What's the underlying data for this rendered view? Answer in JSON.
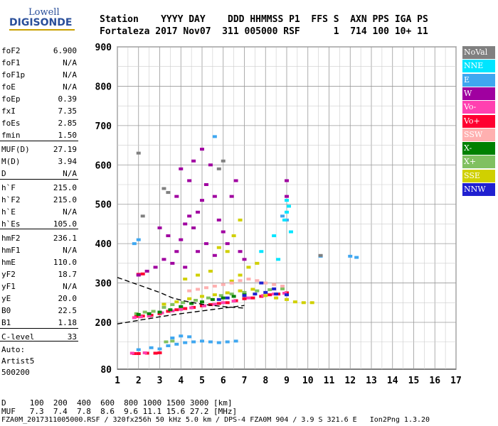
{
  "logo": {
    "top": "Lowell",
    "bottom": "DIGISONDE"
  },
  "header": {
    "line1": "Station    YYYY DAY    DDD HHMMSS P1  FFS S  AXN PPS IGA PS",
    "line2": "Fortaleza 2017 Nov07  311 005000 RSF      1  714 100 10+ 11"
  },
  "params": [
    {
      "label": "foF2",
      "value": "6.900"
    },
    {
      "label": "foF1",
      "value": "N/A"
    },
    {
      "label": "foF1p",
      "value": "N/A"
    },
    {
      "label": "foE",
      "value": "N/A"
    },
    {
      "label": "foEp",
      "value": "0.39"
    },
    {
      "label": "fxI",
      "value": "7.35"
    },
    {
      "label": "foEs",
      "value": "2.85"
    },
    {
      "label": "fmin",
      "value": "1.50"
    },
    {
      "label": "MUF(D)",
      "value": "27.19"
    },
    {
      "label": "M(D)",
      "value": "3.94"
    },
    {
      "label": "D",
      "value": "N/A"
    },
    {
      "label": "h`F",
      "value": "215.0"
    },
    {
      "label": "h`F2",
      "value": "215.0"
    },
    {
      "label": "h`E",
      "value": "N/A"
    },
    {
      "label": "h`Es",
      "value": "105.0"
    },
    {
      "label": "hmF2",
      "value": "236.1"
    },
    {
      "label": "hmF1",
      "value": "N/A"
    },
    {
      "label": "hmE",
      "value": "110.0"
    },
    {
      "label": "yF2",
      "value": "18.7"
    },
    {
      "label": "yF1",
      "value": "N/A"
    },
    {
      "label": "yE",
      "value": "20.0"
    },
    {
      "label": "B0",
      "value": "22.5"
    },
    {
      "label": "B1",
      "value": "1.18"
    },
    {
      "label": "C-level",
      "value": "33"
    }
  ],
  "auto": [
    "Auto:",
    "Artist5",
    "500200"
  ],
  "legend": [
    {
      "label": "NoVal",
      "color": "#808080"
    },
    {
      "label": "NNE",
      "color": "#00e5ff"
    },
    {
      "label": "E",
      "color": "#3fa7f0"
    },
    {
      "label": "W",
      "color": "#a000a0"
    },
    {
      "label": "Vo-",
      "color": "#ff40b0"
    },
    {
      "label": "Vo+",
      "color": "#ff0030"
    },
    {
      "label": "SSW",
      "color": "#ffb0b0"
    },
    {
      "label": "X-",
      "color": "#008000"
    },
    {
      "label": "X+",
      "color": "#80c060"
    },
    {
      "label": "SSE",
      "color": "#d0d000"
    },
    {
      "label": "NNW",
      "color": "#2020d0"
    }
  ],
  "footer": {
    "line1": "D     100  200  400  600  800 1000 1500 3000 [km]",
    "line2": "MUF   7.3  7.4  7.8  8.6  9.6 11.1 15.6 27.2 [MHz]",
    "line3": "FZA0M_2017311005000.RSF / 320fx256h 50 kHz 5.0 km / DPS-4 FZA0M 904 / 3.9 S 321.6 E   Ion2Png 1.3.20"
  },
  "chart_data": {
    "type": "scatter",
    "xlim": [
      1,
      17
    ],
    "ylim": [
      80,
      900
    ],
    "xticks": [
      "1",
      "2",
      "3",
      "4",
      "5",
      "6",
      "7",
      "8",
      "9",
      "10",
      "11",
      "12",
      "13",
      "14",
      "15",
      "16",
      "17"
    ],
    "yticks": [
      "80",
      "200",
      "300",
      "400",
      "500",
      "600",
      "700",
      "800",
      "900"
    ],
    "grid": true,
    "legend_position": "right",
    "series": [
      {
        "name": "Vo+",
        "color": "#ff0030",
        "points": [
          [
            1.9,
            215
          ],
          [
            2.2,
            216
          ],
          [
            2.6,
            218
          ],
          [
            3.0,
            222
          ],
          [
            3.4,
            228
          ],
          [
            3.8,
            232
          ],
          [
            4.2,
            235
          ],
          [
            4.6,
            238
          ],
          [
            5.0,
            242
          ],
          [
            5.4,
            245
          ],
          [
            5.8,
            248
          ],
          [
            6.2,
            250
          ],
          [
            6.6,
            255
          ],
          [
            7.0,
            260
          ],
          [
            7.4,
            262
          ],
          [
            7.8,
            266
          ],
          [
            8.2,
            270
          ],
          [
            8.6,
            272
          ],
          [
            9.0,
            275
          ],
          [
            2.0,
            322
          ],
          [
            2.2,
            323
          ],
          [
            1.8,
            120
          ],
          [
            2.0,
            120
          ],
          [
            2.4,
            121
          ],
          [
            2.8,
            121
          ],
          [
            3.0,
            122
          ]
        ]
      },
      {
        "name": "Vo-",
        "color": "#ff40b0",
        "points": [
          [
            1.8,
            212
          ],
          [
            2.1,
            214
          ],
          [
            2.5,
            216
          ],
          [
            3.1,
            224
          ],
          [
            3.6,
            229
          ],
          [
            4.0,
            233
          ],
          [
            4.5,
            237
          ],
          [
            5.1,
            242
          ],
          [
            5.6,
            246
          ],
          [
            6.0,
            250
          ],
          [
            6.5,
            254
          ],
          [
            7.2,
            262
          ],
          [
            7.9,
            268
          ],
          [
            8.4,
            272
          ],
          [
            8.9,
            274
          ],
          [
            1.7,
            121
          ],
          [
            2.3,
            122
          ]
        ]
      },
      {
        "name": "X+",
        "color": "#80c060",
        "points": [
          [
            1.9,
            222
          ],
          [
            2.3,
            226
          ],
          [
            2.7,
            228
          ],
          [
            3.2,
            238
          ],
          [
            3.6,
            245
          ],
          [
            4.1,
            250
          ],
          [
            4.7,
            256
          ],
          [
            5.3,
            262
          ],
          [
            5.9,
            268
          ],
          [
            6.4,
            272
          ],
          [
            7.0,
            276
          ],
          [
            7.6,
            280
          ],
          [
            8.2,
            283
          ],
          [
            8.8,
            285
          ],
          [
            3.3,
            150
          ],
          [
            3.6,
            152
          ]
        ]
      },
      {
        "name": "X-",
        "color": "#008000",
        "points": [
          [
            2.0,
            220
          ],
          [
            2.5,
            222
          ],
          [
            3.0,
            226
          ],
          [
            3.5,
            232
          ],
          [
            4.0,
            240
          ],
          [
            4.5,
            248
          ],
          [
            5.0,
            252
          ],
          [
            5.5,
            258
          ],
          [
            6.0,
            262
          ],
          [
            6.5,
            266
          ],
          [
            7.0,
            270
          ]
        ]
      },
      {
        "name": "SSE",
        "color": "#d0d000",
        "points": [
          [
            3.2,
            246
          ],
          [
            3.8,
            252
          ],
          [
            4.4,
            260
          ],
          [
            5.0,
            266
          ],
          [
            5.6,
            270
          ],
          [
            6.2,
            275
          ],
          [
            6.8,
            280
          ],
          [
            7.4,
            284
          ],
          [
            8.0,
            268
          ],
          [
            8.5,
            262
          ],
          [
            9.0,
            258
          ],
          [
            9.4,
            252
          ],
          [
            9.8,
            250
          ],
          [
            10.2,
            250
          ],
          [
            6.4,
            305
          ],
          [
            6.8,
            320
          ],
          [
            7.2,
            340
          ],
          [
            7.6,
            350
          ],
          [
            6.2,
            380
          ],
          [
            6.5,
            420
          ],
          [
            6.8,
            460
          ],
          [
            5.8,
            390
          ],
          [
            5.4,
            330
          ],
          [
            4.8,
            320
          ],
          [
            4.2,
            310
          ]
        ]
      },
      {
        "name": "W",
        "color": "#a000a0",
        "points": [
          [
            3.6,
            350
          ],
          [
            3.8,
            380
          ],
          [
            4.0,
            410
          ],
          [
            4.2,
            450
          ],
          [
            4.4,
            470
          ],
          [
            4.6,
            440
          ],
          [
            4.8,
            480
          ],
          [
            5.0,
            510
          ],
          [
            5.2,
            550
          ],
          [
            5.4,
            600
          ],
          [
            4.4,
            560
          ],
          [
            4.6,
            610
          ],
          [
            5.0,
            640
          ],
          [
            3.8,
            520
          ],
          [
            4.0,
            590
          ],
          [
            5.6,
            520
          ],
          [
            5.8,
            460
          ],
          [
            6.0,
            430
          ],
          [
            6.2,
            400
          ],
          [
            6.4,
            520
          ],
          [
            6.6,
            560
          ],
          [
            2.0,
            320
          ],
          [
            2.4,
            330
          ],
          [
            2.8,
            340
          ],
          [
            3.2,
            360
          ],
          [
            3.4,
            420
          ],
          [
            5.2,
            400
          ],
          [
            5.6,
            370
          ],
          [
            6.8,
            380
          ],
          [
            7.0,
            360
          ],
          [
            9.0,
            520
          ],
          [
            9.0,
            560
          ],
          [
            3.0,
            440
          ],
          [
            4.8,
            380
          ],
          [
            4.2,
            340
          ]
        ]
      },
      {
        "name": "SSW",
        "color": "#ffb0b0",
        "points": [
          [
            6.0,
            296
          ],
          [
            6.4,
            300
          ],
          [
            6.8,
            306
          ],
          [
            7.2,
            310
          ],
          [
            7.6,
            306
          ],
          [
            8.0,
            300
          ],
          [
            8.4,
            296
          ],
          [
            8.8,
            292
          ],
          [
            5.6,
            292
          ],
          [
            5.2,
            288
          ],
          [
            4.8,
            284
          ],
          [
            4.4,
            280
          ]
        ]
      },
      {
        "name": "NNW",
        "color": "#2020d0",
        "points": [
          [
            7.0,
            268
          ],
          [
            7.5,
            272
          ],
          [
            8.0,
            276
          ],
          [
            8.5,
            272
          ],
          [
            9.0,
            270
          ],
          [
            7.8,
            300
          ],
          [
            8.4,
            285
          ],
          [
            6.2,
            262
          ],
          [
            5.8,
            258
          ]
        ]
      },
      {
        "name": "E",
        "color": "#3fa7f0",
        "points": [
          [
            3.4,
            140
          ],
          [
            3.8,
            144
          ],
          [
            4.2,
            148
          ],
          [
            4.6,
            150
          ],
          [
            5.0,
            152
          ],
          [
            5.4,
            150
          ],
          [
            5.8,
            148
          ],
          [
            6.2,
            150
          ],
          [
            6.6,
            152
          ],
          [
            3.6,
            160
          ],
          [
            4.0,
            165
          ],
          [
            4.4,
            163
          ],
          [
            2.0,
            130
          ],
          [
            2.6,
            135
          ],
          [
            3.0,
            132
          ],
          [
            1.8,
            400
          ],
          [
            2.0,
            410
          ],
          [
            8.8,
            470
          ],
          [
            9.0,
            460
          ],
          [
            10.6,
            368
          ],
          [
            12.0,
            368
          ],
          [
            12.3,
            365
          ],
          [
            5.6,
            672
          ]
        ]
      },
      {
        "name": "NNE",
        "color": "#00e5ff",
        "points": [
          [
            9.0,
            480
          ],
          [
            9.1,
            495
          ],
          [
            9.0,
            510
          ],
          [
            8.9,
            460
          ],
          [
            8.4,
            420
          ],
          [
            7.8,
            380
          ],
          [
            8.6,
            360
          ],
          [
            9.2,
            430
          ]
        ]
      },
      {
        "name": "NoVal",
        "color": "#808080",
        "points": [
          [
            3.2,
            540
          ],
          [
            3.4,
            530
          ],
          [
            2.2,
            470
          ],
          [
            5.8,
            590
          ],
          [
            6.0,
            610
          ],
          [
            2.0,
            630
          ],
          [
            10.6,
            370
          ]
        ]
      }
    ]
  }
}
